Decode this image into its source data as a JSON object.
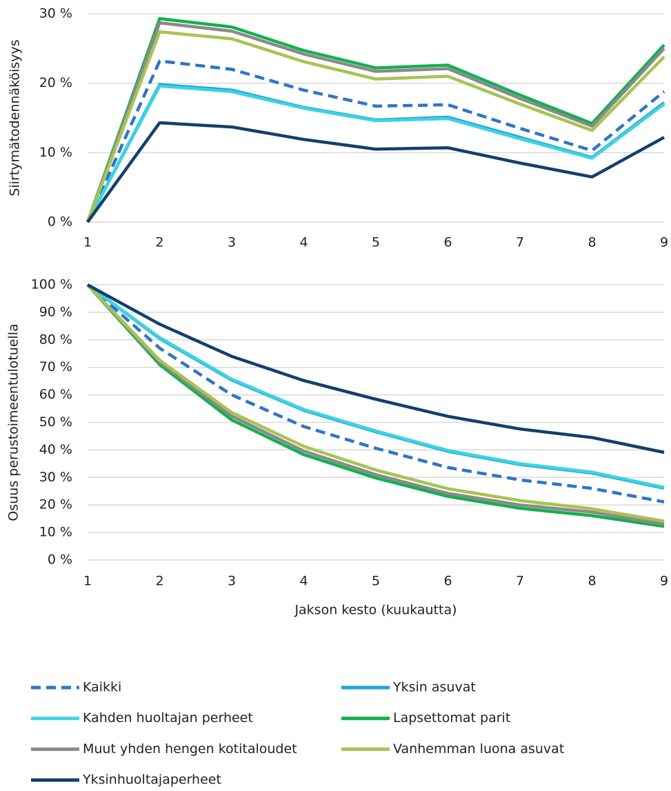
{
  "chart_data": [
    {
      "type": "line",
      "ylabel": "Siirtymätodennäköisyys",
      "categories": [
        1,
        2,
        3,
        4,
        5,
        6,
        7,
        8,
        9
      ],
      "ylim": [
        0,
        30
      ],
      "yticks": [
        {
          "value": 0,
          "label": "0 %"
        },
        {
          "value": 10,
          "label": "10 %"
        },
        {
          "value": 20,
          "label": "20 %"
        },
        {
          "value": 30,
          "label": "30 %"
        }
      ],
      "grid": true,
      "series": [
        {
          "name": "Kaikki",
          "color": "#2e75c6",
          "style": "dashed",
          "values": [
            0,
            23.2,
            22,
            19,
            16.7,
            16.9,
            13.5,
            10.3,
            18.8
          ]
        },
        {
          "name": "Yksin asuvat",
          "color": "#1fa3d8",
          "values": [
            0,
            19.8,
            19,
            16.5,
            14.7,
            15.1,
            12.2,
            9.3,
            17.2
          ]
        },
        {
          "name": "Kahden huoltajan perheet",
          "color": "#3dd3e3",
          "values": [
            0,
            19.6,
            18.8,
            16.4,
            14.6,
            14.9,
            12,
            9.2,
            17
          ]
        },
        {
          "name": "Lapsettomat parit",
          "color": "#12b04f",
          "values": [
            0,
            29.3,
            28.1,
            24.7,
            22.2,
            22.6,
            18.3,
            14.2,
            25.5
          ]
        },
        {
          "name": "Muut yhden hengen kotitaloudet",
          "color": "#8a8a8a",
          "values": [
            0,
            28.7,
            27.5,
            24.2,
            21.7,
            22.1,
            17.8,
            13.8,
            25
          ]
        },
        {
          "name": "Vanhemman luona asuvat",
          "color": "#a6c450",
          "values": [
            0,
            27.4,
            26.4,
            23.1,
            20.6,
            21,
            17,
            13.2,
            23.8
          ]
        },
        {
          "name": "Yksinhuoltajaperheet",
          "color": "#133f6b",
          "values": [
            0,
            14.3,
            13.7,
            11.9,
            10.5,
            10.7,
            8.5,
            6.5,
            12.2
          ]
        }
      ]
    },
    {
      "type": "line",
      "ylabel": "Osuus perustoimeentulotuella",
      "xlabel": "Jakson kesto (kuukautta)",
      "categories": [
        1,
        2,
        3,
        4,
        5,
        6,
        7,
        8,
        9
      ],
      "ylim": [
        0,
        100
      ],
      "yticks": [
        {
          "value": 0,
          "label": "0 %"
        },
        {
          "value": 10,
          "label": "10 %"
        },
        {
          "value": 20,
          "label": "20 %"
        },
        {
          "value": 30,
          "label": "30 %"
        },
        {
          "value": 40,
          "label": "40 %"
        },
        {
          "value": 50,
          "label": "50 %"
        },
        {
          "value": 60,
          "label": "60 %"
        },
        {
          "value": 70,
          "label": "70 %"
        },
        {
          "value": 80,
          "label": "80 %"
        },
        {
          "value": 90,
          "label": "90 %"
        },
        {
          "value": 100,
          "label": "100 %"
        }
      ],
      "grid": true,
      "series": [
        {
          "name": "Kaikki",
          "color": "#2e75c6",
          "style": "dashed",
          "values": [
            100,
            77,
            60,
            48.5,
            40.6,
            33.6,
            29.1,
            26,
            21.1
          ]
        },
        {
          "name": "Yksin asuvat",
          "color": "#1fa3d8",
          "values": [
            100,
            80.5,
            65.4,
            54.4,
            46.6,
            39.5,
            34.7,
            31.6,
            26.1
          ]
        },
        {
          "name": "Kahden huoltajan perheet",
          "color": "#3dd3e3",
          "values": [
            100,
            80.8,
            65.7,
            54.7,
            46.9,
            39.8,
            35,
            31.9,
            26.4
          ]
        },
        {
          "name": "Lapsettomat parit",
          "color": "#12b04f",
          "values": [
            100,
            71,
            50.9,
            38.3,
            29.8,
            23.1,
            18.8,
            16.1,
            12.2
          ]
        },
        {
          "name": "Muut yhden hengen kotitaloudet",
          "color": "#8a8a8a",
          "values": [
            100,
            71.8,
            52.3,
            39.6,
            31,
            24.2,
            20,
            17.4,
            13
          ]
        },
        {
          "name": "Vanhemman luona asuvat",
          "color": "#a6c450",
          "values": [
            100,
            72.6,
            53.6,
            41.3,
            32.7,
            25.9,
            21.6,
            18.6,
            14.1
          ]
        },
        {
          "name": "Yksinhuoltajaperheet",
          "color": "#133f6b",
          "values": [
            100,
            85.7,
            74,
            65.2,
            58.4,
            52.2,
            47.6,
            44.5,
            39.1
          ]
        }
      ]
    }
  ]
}
